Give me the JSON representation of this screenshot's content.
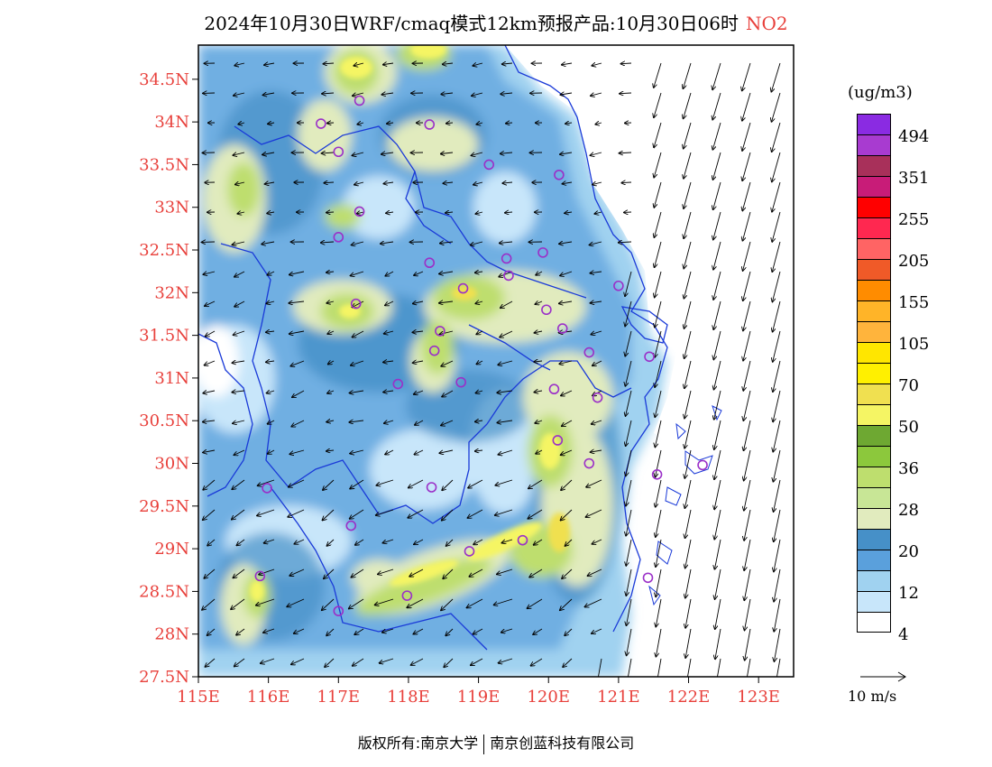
{
  "title": {
    "main": "2024年10月30日WRF/cmaq模式12km预报产品:10月30日06时",
    "pollutant": "NO2"
  },
  "footer": {
    "left": "版权所有:南京大学",
    "right": "南京创蓝科技有限公司"
  },
  "axes": {
    "lat_labels": [
      "34.5N",
      "34N",
      "33.5N",
      "33N",
      "32.5N",
      "32N",
      "31.5N",
      "31N",
      "30.5N",
      "30N",
      "29.5N",
      "29N",
      "28.5N",
      "28N",
      "27.5N"
    ],
    "lat_values": [
      34.5,
      34,
      33.5,
      33,
      32.5,
      32,
      31.5,
      31,
      30.5,
      30,
      29.5,
      29,
      28.5,
      28,
      27.5
    ],
    "lon_labels": [
      "115E",
      "116E",
      "117E",
      "118E",
      "119E",
      "120E",
      "121E",
      "122E",
      "123E"
    ],
    "lon_values": [
      115,
      116,
      117,
      118,
      119,
      120,
      121,
      122,
      123
    ],
    "lon_range": [
      115,
      123.5
    ],
    "lat_range": [
      27.5,
      34.9
    ],
    "label_color": "#e8413c"
  },
  "legend": {
    "unit": "(ug/m3)",
    "labels": [
      "494",
      "351",
      "255",
      "205",
      "155",
      "105",
      "70",
      "50",
      "36",
      "28",
      "20",
      "12",
      "4"
    ],
    "colors": [
      "#8a2be2",
      "#a83bd0",
      "#a8305a",
      "#c81c78",
      "#ff0000",
      "#ff2850",
      "#ff6464",
      "#f05a28",
      "#ff8c00",
      "#ffb428",
      "#ffb43c",
      "#ffe600",
      "#fff000",
      "#f0e050",
      "#f5f564",
      "#6ea832",
      "#8cc83c",
      "#bede6e",
      "#c8e696",
      "#e1ebbe",
      "#4690c8",
      "#5aa0dc",
      "#a0d2f0",
      "#c8e6fa",
      "#ffffff"
    ]
  },
  "wind_ref": {
    "label": "10 m/s"
  },
  "colors": {
    "border_blue": "#1a3ad8",
    "station_purple": "#9b30c8"
  }
}
